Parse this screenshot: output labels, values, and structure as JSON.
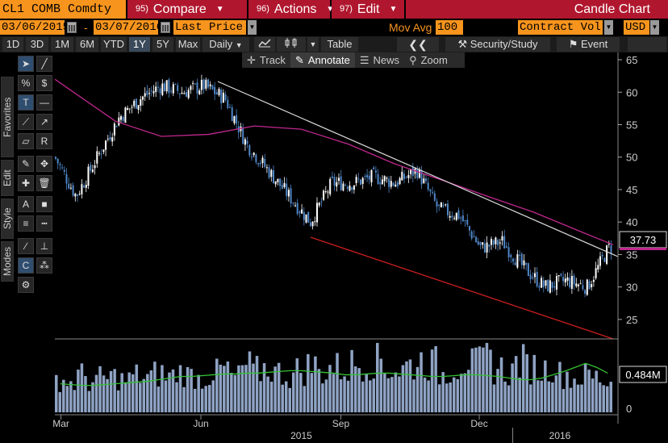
{
  "header": {
    "ticker": "CL1 COMB Comdty",
    "compare": {
      "num": "95)",
      "label": "Compare"
    },
    "actions": {
      "num": "96)",
      "label": "Actions"
    },
    "edit": {
      "num": "97)",
      "label": "Edit"
    },
    "chart_type": "Candle Chart"
  },
  "controls": {
    "start_date": "03/06/2015",
    "dash": "-",
    "end_date": "03/07/2016",
    "price_field": "Last Price",
    "mov_avg_label": "Mov Avg",
    "mov_avg_value": "100",
    "volume_field": "Contract Vol",
    "currency": "USD"
  },
  "toolbar": {
    "periods": [
      "1D",
      "3D",
      "1M",
      "6M",
      "YTD",
      "1Y",
      "5Y",
      "Max"
    ],
    "selected_period": "1Y",
    "frequency": "Daily",
    "table_label": "Table",
    "security_study_label": "Security/Study",
    "event_label": "Event"
  },
  "subtoolbar": {
    "track": "Track",
    "annotate": "Annotate",
    "news": "News",
    "zoom": "Zoom"
  },
  "sidebar": {
    "tabs": [
      "Favorites",
      "Edit",
      "Style",
      "Modes"
    ]
  },
  "colors": {
    "orange": "#f7941d",
    "red": "#b0172e",
    "candle_up": "#ffffff",
    "candle_down": "#4f86c6",
    "ma_line": "#c0288f",
    "trend_upper": "#d8d8d8",
    "trend_lower": "#cc1f1f",
    "volume_bar": "#8fa3c4",
    "volume_ma": "#35c235"
  },
  "chart_data": {
    "type": "line",
    "y_ticks": [
      65,
      60,
      55,
      50,
      45,
      40,
      35,
      30,
      25
    ],
    "x_month_labels": [
      "Mar",
      "Jun",
      "Sep",
      "Dec"
    ],
    "year_labels": [
      "2015",
      "2016"
    ],
    "last_price_label": "37.73",
    "volume_tick_label": "0",
    "volume_last_label": "0.484M",
    "ylim": [
      22,
      65.5
    ],
    "series": [
      {
        "x": [
          "2015-03-06",
          "2015-03-20",
          "2015-04-03",
          "2015-04-17",
          "2015-05-01",
          "2015-05-15",
          "2015-05-29",
          "2015-06-12",
          "2015-06-26",
          "2015-07-10",
          "2015-07-24",
          "2015-08-07",
          "2015-08-21",
          "2015-09-04",
          "2015-09-18",
          "2015-10-02",
          "2015-10-16",
          "2015-10-30",
          "2015-11-13",
          "2015-11-27",
          "2015-12-11",
          "2015-12-25",
          "2016-01-08",
          "2016-01-22",
          "2016-02-05",
          "2016-02-19",
          "2016-03-04"
        ],
        "values": [
          50,
          44,
          50,
          56,
          59,
          61,
          60,
          61,
          59,
          52,
          48,
          44,
          40,
          46,
          46,
          47,
          46,
          48,
          42,
          41,
          36,
          37,
          33,
          30,
          31,
          30,
          36
        ]
      },
      {
        "name": "Mov Avg 100",
        "x": [
          "2015-03-06",
          "2015-04-15",
          "2015-05-15",
          "2015-06-15",
          "2015-07-15",
          "2015-08-15",
          "2015-09-15",
          "2015-10-15",
          "2015-11-15",
          "2015-12-15",
          "2016-01-15",
          "2016-02-15",
          "2016-03-07"
        ],
        "values": [
          62,
          55.5,
          53.2,
          53.5,
          54.8,
          54.3,
          52,
          49,
          46.5,
          44,
          41.5,
          38.5,
          36.5
        ]
      }
    ],
    "volume": [
      0.45,
      0.4,
      0.5,
      0.42,
      0.46,
      0.48,
      0.44,
      0.5,
      0.47,
      0.52,
      0.49,
      0.55,
      0.5,
      0.46,
      0.53,
      0.58,
      0.48,
      0.62,
      0.56,
      0.6,
      0.54,
      0.5,
      0.57,
      0.63,
      0.55,
      0.61,
      0.59,
      0.66,
      0.68,
      0.72,
      0.6,
      0.58,
      0.64,
      0.7,
      0.66,
      0.52,
      0.62,
      0.7,
      0.65,
      0.74,
      0.6,
      0.55,
      0.68,
      0.62,
      0.58,
      0.64,
      0.52,
      0.46,
      0.5,
      0.48,
      0.42
    ],
    "volume_ma": [
      0.35,
      0.34,
      0.33,
      0.33,
      0.34,
      0.35,
      0.36,
      0.37,
      0.38,
      0.4,
      0.42,
      0.44,
      0.44,
      0.45,
      0.46,
      0.47,
      0.47,
      0.48,
      0.48,
      0.49,
      0.5,
      0.51,
      0.51,
      0.5,
      0.49,
      0.48,
      0.46,
      0.46,
      0.47,
      0.48,
      0.48,
      0.47,
      0.46,
      0.45,
      0.44,
      0.44,
      0.45,
      0.46,
      0.46,
      0.45,
      0.44,
      0.42,
      0.4,
      0.4,
      0.42,
      0.46,
      0.5,
      0.55,
      0.6,
      0.55,
      0.48
    ]
  }
}
